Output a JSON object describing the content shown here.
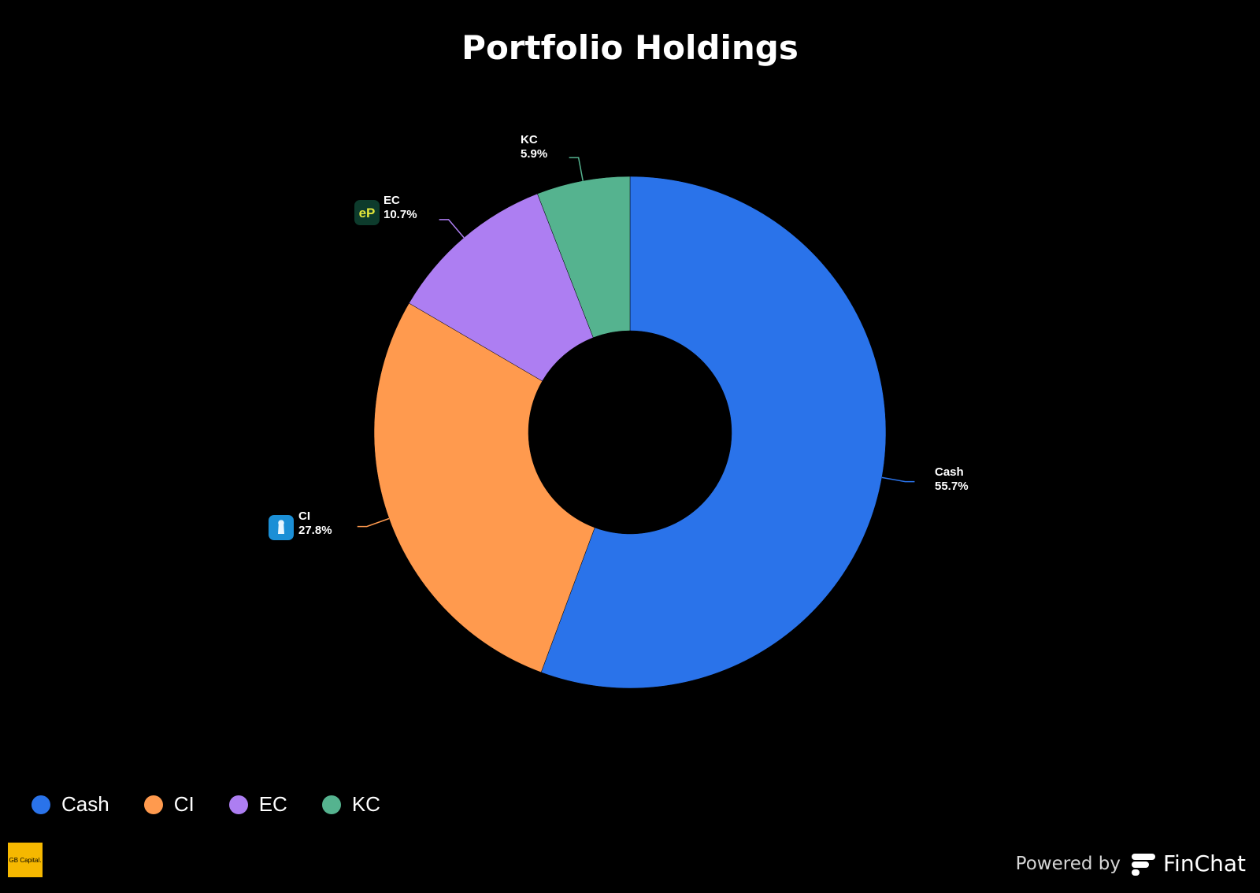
{
  "chart_data": {
    "type": "pie",
    "title": "Portfolio Holdings",
    "donut": true,
    "slices": [
      {
        "name": "Cash",
        "value": 55.7,
        "label": "55.7%",
        "color": "#2a73ea"
      },
      {
        "name": "CI",
        "value": 27.8,
        "label": "27.8%",
        "color": "#ff9a4e"
      },
      {
        "name": "EC",
        "value": 10.7,
        "label": "10.7%",
        "color": "#ad7ef2"
      },
      {
        "name": "KC",
        "value": 5.9,
        "label": "5.9%",
        "color": "#55b38f"
      }
    ],
    "legend_position": "bottom-left"
  },
  "legend": [
    "Cash",
    "CI",
    "EC",
    "KC"
  ],
  "icons": {
    "ci": "lighthouse-icon",
    "ec": "ep-logo-icon"
  },
  "ec_icon_text": "eP",
  "brand": {
    "text": "GB Capital."
  },
  "footer": {
    "powered_by": "Powered by",
    "product": "FinChat"
  }
}
